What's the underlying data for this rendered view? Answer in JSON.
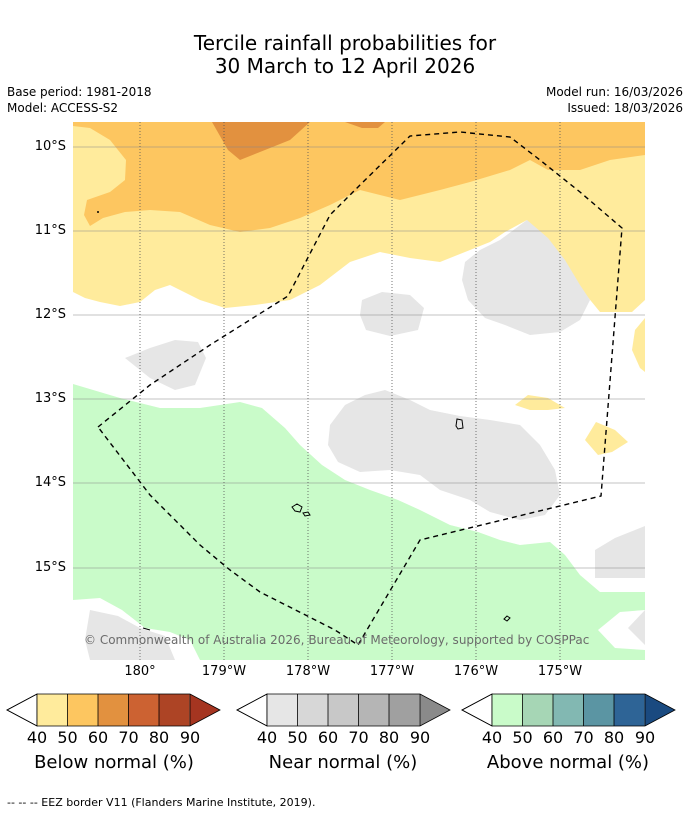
{
  "title": {
    "line1": "Tercile rainfall probabilities for",
    "line2": "30 March to 12 April 2026"
  },
  "meta": {
    "base_period": "Base period: 1981-2018",
    "model": "Model: ACCESS-S2",
    "model_run": "Model run: 16/03/2026",
    "issued": "Issued: 18/03/2026"
  },
  "map": {
    "lat_labels": [
      "10°S",
      "11°S",
      "12°S",
      "13°S",
      "14°S",
      "15°S"
    ],
    "lon_labels": [
      "180°",
      "179°W",
      "178°W",
      "177°W",
      "176°W",
      "175°W"
    ],
    "copyright": "© Commonwealth of Australia 2026, Bureau of Meteorology, supported by COSPPac"
  },
  "legend": {
    "tick_labels": [
      "40",
      "50",
      "60",
      "70",
      "80",
      "90"
    ],
    "below": {
      "title": "Below normal (%)",
      "colors": [
        "#ffeb9c",
        "#fdc660",
        "#e2913f",
        "#cc6232",
        "#ad4425",
        "#a53520"
      ]
    },
    "near": {
      "title": "Near normal (%)",
      "colors": [
        "#e6e6e6",
        "#d7d7d7",
        "#c8c8c8",
        "#b5b5b5",
        "#a0a0a0",
        "#8a8a8a"
      ]
    },
    "above": {
      "title": "Above normal (%)",
      "colors": [
        "#c9fbc9",
        "#a6d6b5",
        "#82b8b2",
        "#5b95a3",
        "#2e6496",
        "#1a4a80"
      ]
    }
  },
  "footnote": "--  --  -- EEZ border V11 (Flanders Marine Institute, 2019)."
}
